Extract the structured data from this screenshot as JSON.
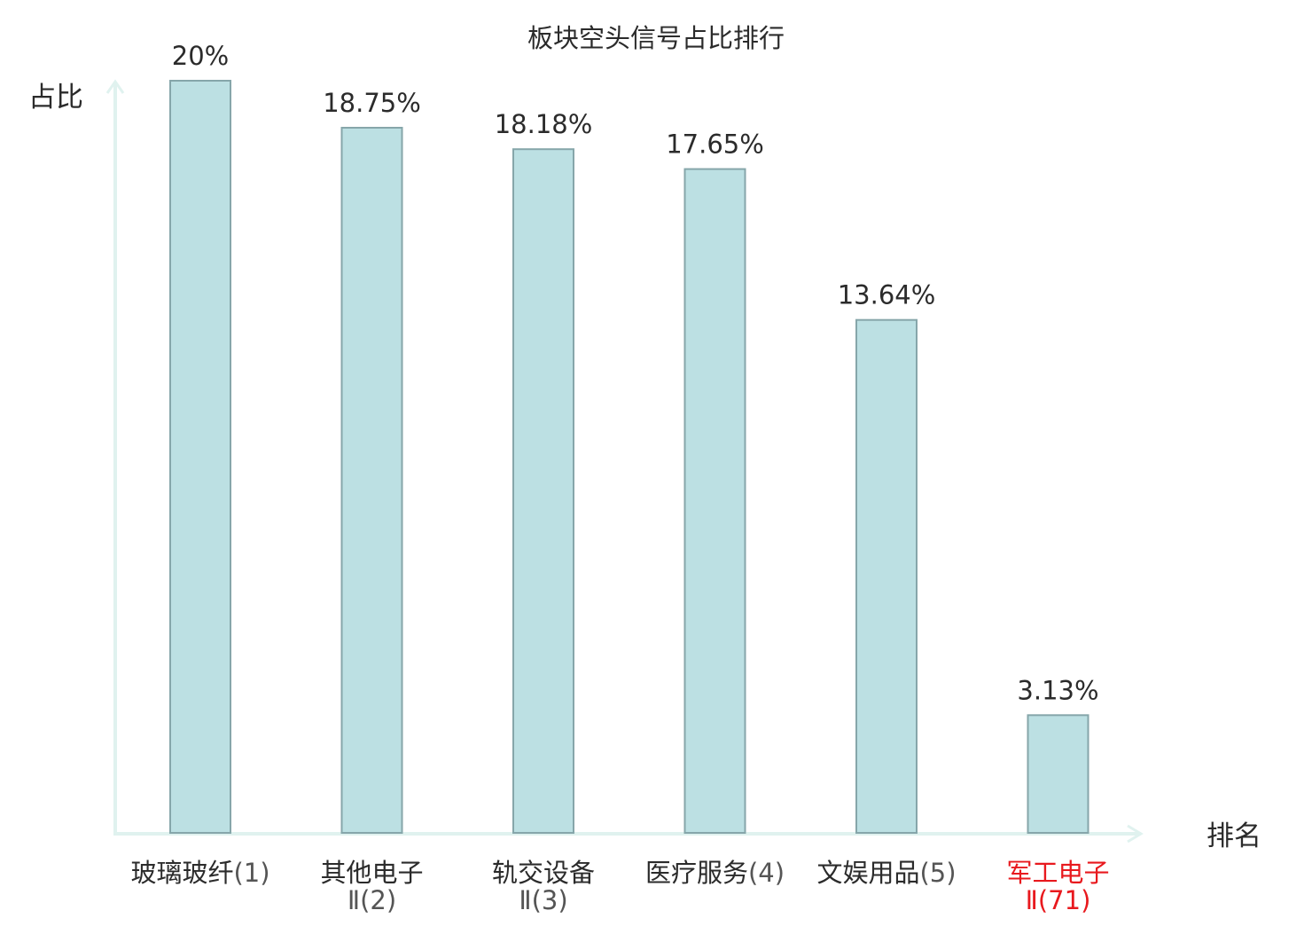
{
  "chart_data": {
    "type": "bar",
    "title": "板块空头信号占比排行",
    "ylabel": "占比",
    "xlabel": "排名",
    "ylim": [
      0,
      20
    ],
    "grid": false,
    "legend": "none",
    "categories": [
      {
        "name": "玻璃玻纤",
        "rank": "(1)",
        "line2": "",
        "highlight": false
      },
      {
        "name": "其他电子",
        "rank": "",
        "line2": "Ⅱ(2)",
        "highlight": false
      },
      {
        "name": "轨交设备",
        "rank": "",
        "line2": "Ⅱ(3)",
        "highlight": false
      },
      {
        "name": "医疗服务",
        "rank": "(4)",
        "line2": "",
        "highlight": false
      },
      {
        "name": "文娱用品",
        "rank": "(5)",
        "line2": "",
        "highlight": false
      },
      {
        "name": "军工电子",
        "rank": "",
        "line2": "Ⅱ(71)",
        "highlight": true
      }
    ],
    "values": [
      20,
      18.75,
      18.18,
      17.65,
      13.64,
      3.13
    ],
    "value_labels": [
      "20%",
      "18.75%",
      "18.18%",
      "17.65%",
      "13.64%",
      "3.13%"
    ],
    "colors": {
      "bar_fill": "#bce0e3",
      "bar_stroke": "#86a6aa",
      "axis": "#e0f2ef",
      "text": "#2b2b2b",
      "rank_text": "#555555",
      "highlight": "#e8191e"
    }
  }
}
